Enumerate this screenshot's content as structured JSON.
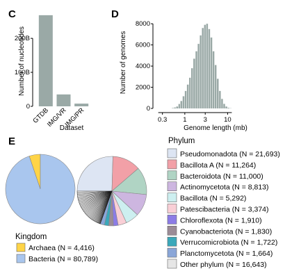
{
  "panels": {
    "c": "C",
    "d": "D",
    "e": "E"
  },
  "chart_data": [
    {
      "id": "C",
      "type": "bar",
      "categories": [
        "GTDB",
        "IMG/VR",
        "IMG/PR"
      ],
      "values": [
        268,
        35,
        8
      ],
      "unit": "B",
      "ylabel": "Number of nucleotides",
      "xlabel": "Dataset",
      "yticks": [
        0,
        100,
        200
      ],
      "ytick_labels": [
        "0",
        "100B",
        "200B"
      ],
      "ylim": [
        0,
        280
      ],
      "color": "#9aa9a6"
    },
    {
      "id": "D",
      "type": "bar",
      "xscale": "log",
      "xlabel": "Genome length (mb)",
      "ylabel": "Number of genomes",
      "xticks": [
        0.3,
        1,
        3,
        10
      ],
      "xtick_labels": [
        "0.3",
        "1",
        "3",
        "10"
      ],
      "yticks": [
        0,
        2000,
        4000,
        6000,
        8000
      ],
      "ytick_labels": [
        "0",
        "2000",
        "4000",
        "6000",
        "8000"
      ],
      "ylim": [
        0,
        8800
      ],
      "xlim": [
        0.18,
        16
      ],
      "bin_edges": [
        0.5,
        0.56,
        0.63,
        0.71,
        0.79,
        0.89,
        1.0,
        1.12,
        1.26,
        1.41,
        1.58,
        1.78,
        2.0,
        2.24,
        2.51,
        2.82,
        3.16,
        3.55,
        3.98,
        4.47,
        5.01,
        5.62,
        6.31,
        7.08,
        7.94,
        8.91,
        10.0,
        11.2,
        12.6
      ],
      "counts": [
        40,
        90,
        180,
        420,
        700,
        1150,
        1650,
        2250,
        2900,
        3800,
        4700,
        5400,
        6100,
        6900,
        7600,
        7900,
        8000,
        7500,
        6700,
        5400,
        4100,
        2800,
        1650,
        900,
        430,
        180,
        60,
        20
      ],
      "color": "#9aa9a6"
    },
    {
      "id": "E-kingdom",
      "type": "pie",
      "legend_title": "Kingdom",
      "slices": [
        {
          "name": "Archaea",
          "n": 4416,
          "label": "Archaea (N = 4,416)",
          "color": "#ffd447"
        },
        {
          "name": "Bacteria",
          "n": 80789,
          "label": "Bacteria (N = 80,789)",
          "color": "#a9c6ee"
        }
      ]
    },
    {
      "id": "E-phylum",
      "type": "pie",
      "legend_title": "Phylum",
      "slices": [
        {
          "name": "Pseudomonadota",
          "n": 21693,
          "label": "Pseudomonadota (N = 21,693)",
          "color": "#dde5f3"
        },
        {
          "name": "Bacillota A",
          "n": 11264,
          "label": "Bacillota A (N = 11,264)",
          "color": "#f2a0a7"
        },
        {
          "name": "Bacteroidota",
          "n": 11000,
          "label": "Bacteroidota (N = 11,000)",
          "color": "#b0d4c4"
        },
        {
          "name": "Actinomycetota",
          "n": 8813,
          "label": "Actinomycetota (N = 8,813)",
          "color": "#cdb6e0"
        },
        {
          "name": "Bacillota",
          "n": 5292,
          "label": "Bacillota (N = 5,292)",
          "color": "#cdeff0"
        },
        {
          "name": "Patescibacteria",
          "n": 3374,
          "label": "Patescibacteria (N = 3,374)",
          "color": "#f9cfd6"
        },
        {
          "name": "Chloroflexota",
          "n": 1910,
          "label": "Chloroflexota (N = 1,910)",
          "color": "#8c7ce6"
        },
        {
          "name": "Cyanobacteriota",
          "n": 1830,
          "label": "Cyanobacteriota (N = 1,830)",
          "color": "#9c8c97"
        },
        {
          "name": "Verrucomicrobiota",
          "n": 1722,
          "label": "Verrucomicrobiota (N = 1,722)",
          "color": "#3aa8ba"
        },
        {
          "name": "Planctomycetota",
          "n": 1664,
          "label": "Planctomycetota (N = 1,664)",
          "color": "#8aa6d8"
        },
        {
          "name": "Other phylum",
          "n": 16643,
          "label": "Other phylum (N = 16,643)",
          "color": "#e6e6e6"
        }
      ]
    }
  ]
}
